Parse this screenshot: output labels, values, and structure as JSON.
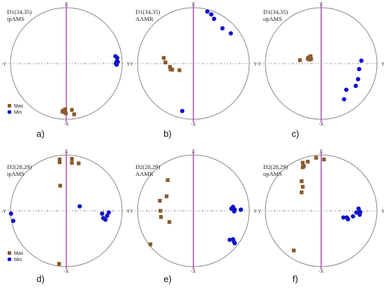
{
  "colors": {
    "max": "#8B5A2B",
    "min": "#1010C8",
    "circle": "#888888",
    "vertical_axis": "#B040B0",
    "horizontal_axis": "#777777",
    "background": "#ffffff"
  },
  "axis_labels": {
    "top": "X",
    "bottom": "-X",
    "left": "-Y",
    "right": "Y"
  },
  "legend": {
    "max_label": "Max",
    "min_label": "Min"
  },
  "chart_data": [
    {
      "type": "scatter",
      "panel": "a)",
      "title_line1": "D1(34,35)",
      "title_line2": "ipAMS",
      "xlim": [
        -1,
        1
      ],
      "ylim": [
        -1,
        1
      ],
      "legend_shown": true,
      "legend_position": "bottom-left",
      "series": [
        {
          "name": "Max",
          "points": [
            [
              -0.02,
              -0.82
            ],
            [
              0.1,
              -0.83
            ],
            [
              -0.07,
              -0.86
            ],
            [
              -0.03,
              -0.87
            ],
            [
              -0.06,
              -0.85
            ],
            [
              -0.01,
              -0.89
            ],
            [
              -0.04,
              -0.84
            ],
            [
              0.14,
              -0.91
            ]
          ]
        },
        {
          "name": "Min",
          "points": [
            [
              0.88,
              0.13
            ],
            [
              0.91,
              0.1
            ],
            [
              0.9,
              0.03
            ],
            [
              0.89,
              0.0
            ],
            [
              0.92,
              0.03
            ],
            [
              0.9,
              -0.02
            ]
          ]
        }
      ]
    },
    {
      "type": "scatter",
      "panel": "b)",
      "title_line1": "D1(34,35)",
      "title_line2": "AAMR",
      "xlim": [
        -1,
        1
      ],
      "ylim": [
        -1,
        1
      ],
      "legend_shown": false,
      "series": [
        {
          "name": "Max",
          "points": [
            [
              -0.53,
              0.1
            ],
            [
              -0.5,
              0.02
            ],
            [
              -0.42,
              -0.06
            ],
            [
              -0.38,
              -0.11
            ],
            [
              -0.41,
              -0.1
            ],
            [
              -0.25,
              -0.12
            ]
          ]
        },
        {
          "name": "Min",
          "points": [
            [
              0.25,
              0.93
            ],
            [
              0.32,
              0.88
            ],
            [
              0.37,
              0.8
            ],
            [
              0.52,
              0.63
            ],
            [
              0.67,
              0.54
            ],
            [
              -0.2,
              -0.85
            ]
          ]
        }
      ]
    },
    {
      "type": "scatter",
      "panel": "c)",
      "title_line1": "D1(34,35)",
      "title_line2": "opAMS",
      "xlim": [
        -1,
        1
      ],
      "ylim": [
        -1,
        1
      ],
      "legend_shown": false,
      "series": [
        {
          "name": "Max",
          "points": [
            [
              -0.38,
              0.06
            ],
            [
              -0.24,
              0.09
            ],
            [
              -0.2,
              0.1
            ],
            [
              -0.18,
              0.08
            ],
            [
              -0.22,
              0.11
            ],
            [
              -0.19,
              0.13
            ],
            [
              -0.21,
              0.07
            ]
          ]
        },
        {
          "name": "Min",
          "points": [
            [
              0.72,
              0.05
            ],
            [
              0.68,
              -0.1
            ],
            [
              0.66,
              -0.28
            ],
            [
              0.62,
              -0.4
            ],
            [
              0.45,
              -0.47
            ],
            [
              0.41,
              -0.64
            ]
          ]
        }
      ]
    },
    {
      "type": "scatter",
      "panel": "d)",
      "title_line1": "D2(28,29)",
      "title_line2": "ipAMS",
      "xlim": [
        -1,
        1
      ],
      "ylim": [
        -1,
        1
      ],
      "legend_shown": true,
      "legend_position": "bottom-left",
      "series": [
        {
          "name": "Max",
          "points": [
            [
              -0.12,
              0.92
            ],
            [
              -0.12,
              0.87
            ],
            [
              0.1,
              0.93
            ],
            [
              0.22,
              0.85
            ],
            [
              0.1,
              0.86
            ],
            [
              -0.11,
              0.45
            ],
            [
              -0.13,
              -0.95
            ]
          ]
        },
        {
          "name": "Min",
          "points": [
            [
              -0.99,
              -0.05
            ],
            [
              -0.95,
              -0.18
            ],
            [
              0.24,
              0.08
            ],
            [
              0.64,
              -0.05
            ],
            [
              0.73,
              -0.09
            ],
            [
              0.76,
              -0.03
            ],
            [
              0.66,
              -0.13
            ],
            [
              0.7,
              -0.16
            ]
          ]
        }
      ]
    },
    {
      "type": "scatter",
      "panel": "e)",
      "title_line1": "D2(28,29)",
      "title_line2": "AAMR",
      "xlim": [
        -1,
        1
      ],
      "ylim": [
        -1,
        1
      ],
      "legend_shown": false,
      "series": [
        {
          "name": "Max",
          "points": [
            [
              -0.46,
              0.55
            ],
            [
              -0.48,
              0.26
            ],
            [
              -0.6,
              0.18
            ],
            [
              -0.59,
              0.0
            ],
            [
              -0.58,
              -0.11
            ],
            [
              -0.43,
              -0.2
            ],
            [
              -0.77,
              -0.6
            ]
          ]
        },
        {
          "name": "Min",
          "points": [
            [
              0.85,
              0.02
            ],
            [
              0.74,
              0.02
            ],
            [
              0.71,
              0.07
            ],
            [
              0.73,
              -0.01
            ],
            [
              0.68,
              0.04
            ],
            [
              0.71,
              -0.51
            ],
            [
              0.74,
              -0.58
            ],
            [
              0.65,
              -0.52
            ],
            [
              0.73,
              -0.56
            ]
          ]
        }
      ]
    },
    {
      "type": "scatter",
      "panel": "f)",
      "title_line1": "D2(28,29)",
      "title_line2": "opAMS",
      "xlim": [
        -1,
        1
      ],
      "ylim": [
        -1,
        1
      ],
      "legend_shown": false,
      "series": [
        {
          "name": "Max",
          "points": [
            [
              -0.24,
              0.88
            ],
            [
              -0.33,
              0.86
            ],
            [
              -0.33,
              0.78
            ],
            [
              -0.31,
              0.8
            ],
            [
              -0.09,
              0.95
            ],
            [
              0.05,
              0.92
            ],
            [
              -0.35,
              0.53
            ],
            [
              -0.33,
              0.43
            ],
            [
              -0.35,
              0.33
            ],
            [
              -0.49,
              -0.71
            ]
          ]
        },
        {
          "name": "Min",
          "points": [
            [
              0.67,
              0.04
            ],
            [
              0.7,
              -0.02
            ],
            [
              0.69,
              -0.07
            ],
            [
              0.63,
              -0.03
            ],
            [
              0.57,
              -0.1
            ],
            [
              0.48,
              -0.15
            ],
            [
              0.46,
              -0.12
            ],
            [
              0.4,
              -0.12
            ]
          ]
        }
      ]
    }
  ]
}
